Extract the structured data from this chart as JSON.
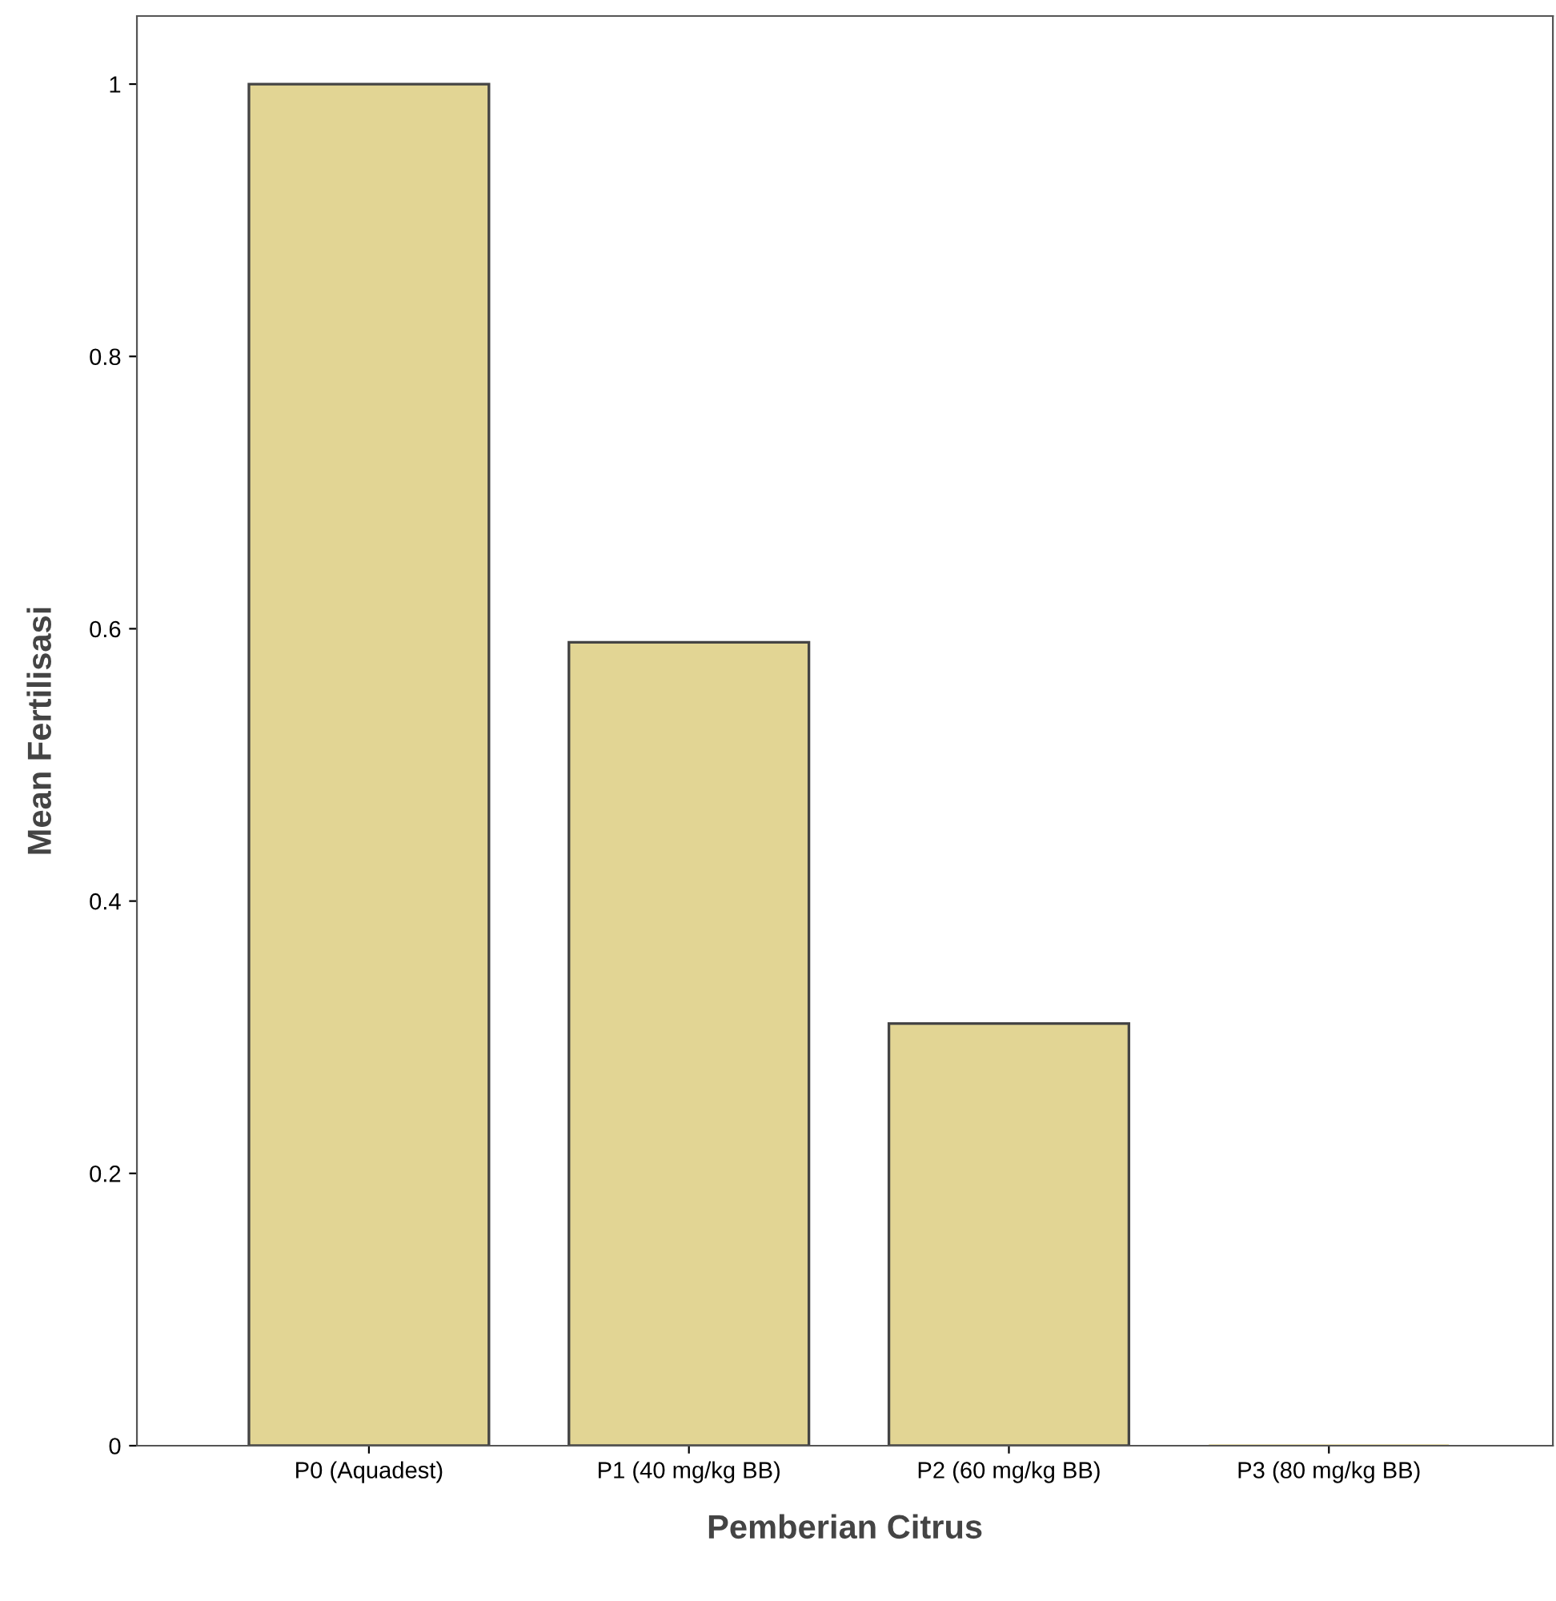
{
  "chart_data": {
    "type": "bar",
    "xlabel": "Pemberian Citrus",
    "ylabel": "Mean Fertilisasi",
    "categories": [
      "P0 (Aquadest)",
      "P1 (40 mg/kg BB)",
      "P2 (60 mg/kg BB)",
      "P3 (80 mg/kg BB)"
    ],
    "values": [
      1.0,
      0.59,
      0.31,
      0
    ],
    "color": "#e2d594",
    "ylim": [
      0,
      1.05
    ],
    "yticks": [
      0,
      0.2,
      0.4,
      0.6,
      0.8,
      1
    ],
    "grid": false,
    "legend": false
  }
}
